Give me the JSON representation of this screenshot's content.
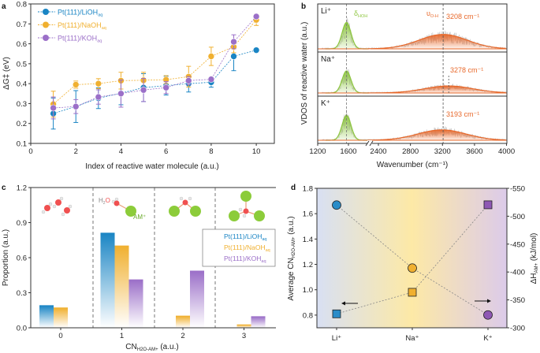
{
  "panel_labels": [
    "a",
    "b",
    "c",
    "d"
  ],
  "chart_data": [
    {
      "panel": "a",
      "type": "line",
      "xlabel": "Index of reactive water molecule (a.u.)",
      "ylabel": "ΔG‡ (eV)",
      "xlim": [
        0,
        10.8
      ],
      "ylim": [
        0.1,
        0.8
      ],
      "xticks": [
        "0",
        "2",
        "4",
        "6",
        "8",
        "10"
      ],
      "yticks": [
        "0.1",
        "0.2",
        "0.3",
        "0.4",
        "0.5",
        "0.6",
        "0.7",
        "0.8"
      ],
      "legend": "top-left",
      "x": [
        1,
        2,
        3,
        4,
        5,
        6,
        7,
        8,
        9,
        10
      ],
      "series": [
        {
          "name": "Pt(111)/LiOH",
          "sub": "aq",
          "color": "#1a85c4",
          "values": [
            0.25,
            0.285,
            0.327,
            0.352,
            0.38,
            0.39,
            0.4,
            0.407,
            0.537,
            0.568
          ],
          "errors": [
            0.078,
            0.08,
            0.052,
            0.058,
            0.07,
            0.047,
            0.042,
            0.025,
            0.072,
            0.0
          ]
        },
        {
          "name": "Pt(111)/NaOH",
          "sub": "aq",
          "color": "#f0b030",
          "values": [
            0.297,
            0.395,
            0.4,
            0.415,
            0.417,
            0.42,
            0.435,
            0.537,
            0.585,
            0.72
          ],
          "errors": [
            0.065,
            0.018,
            0.025,
            0.042,
            0.04,
            0.02,
            0.052,
            0.046,
            0.03,
            0.028
          ]
        },
        {
          "name": "Pt(111)/KOH",
          "sub": "aq",
          "color": "#9b6fc8",
          "values": [
            0.278,
            0.285,
            0.333,
            0.35,
            0.368,
            0.38,
            0.415,
            0.422,
            0.61,
            0.737
          ],
          "errors": [
            0.055,
            0.035,
            0.036,
            0.068,
            0.058,
            0.03,
            0.02,
            0.01,
            0.035,
            0.01
          ]
        }
      ]
    },
    {
      "panel": "b",
      "type": "area",
      "xlabel": "Wavenumber (cm⁻¹)",
      "ylabel": "VDOS of reactive water (a.u.)",
      "xticks": [
        "1200",
        "1600",
        "2400",
        "2800",
        "3200",
        "3600",
        "4000"
      ],
      "xtick_values": [
        1200,
        1600,
        2400,
        2800,
        3200,
        3600,
        4000
      ],
      "axis_break": [
        1870,
        2270
      ],
      "bend_label": "δ",
      "bend_sub": "HOH",
      "stretch_label": "υ",
      "stretch_sub": "O-H",
      "colors": {
        "bend": "#8dc63f",
        "stretch": "#e8682a",
        "raw": "#c8c8c8"
      },
      "reference_line": 3208,
      "bend_center": 1575,
      "panels": [
        {
          "label": "Li⁺",
          "peak": 3208,
          "peak_label": "3208 cm⁻¹",
          "bend_intensity": 0.55,
          "stretch_intensity": 0.3
        },
        {
          "label": "Na⁺",
          "peak": 3278,
          "peak_label": "3278 cm⁻¹",
          "bend_intensity": 0.5,
          "stretch_intensity": 0.16
        },
        {
          "label": "K⁺",
          "peak": 3193,
          "peak_label": "3193 cm⁻¹",
          "bend_intensity": 0.53,
          "stretch_intensity": 0.22
        }
      ]
    },
    {
      "panel": "c",
      "type": "bar",
      "xlabel": "CN",
      "xlabel_sub": "H2O-AM+",
      "xlabel_unit": " (a.u.)",
      "ylabel": "Proportion (a.u.)",
      "ylim": [
        0,
        1.2
      ],
      "yticks": [
        "0.0",
        "0.3",
        "0.6",
        "0.9",
        "1.2"
      ],
      "categories": [
        "0",
        "1",
        "2",
        "3"
      ],
      "molecule_labels": {
        "water": "H",
        "water_sub": "2",
        "water_o": "O",
        "cation": "AM⁺"
      },
      "legend": "right",
      "series": [
        {
          "name": "Pt(111)/LiOH",
          "sub": "aq",
          "color": "#1a85c4",
          "values": [
            0.19,
            0.81,
            0.0,
            0.0
          ]
        },
        {
          "name": "Pt(111)/NaOH",
          "sub": "aq",
          "color": "#f0b030",
          "values": [
            0.17,
            0.7,
            0.1,
            0.025
          ]
        },
        {
          "name": "Pt(111)/KOH",
          "sub": "aq",
          "color": "#9b6fc8",
          "values": [
            0.0,
            0.41,
            0.485,
            0.095
          ]
        }
      ]
    },
    {
      "panel": "d",
      "type": "scatter",
      "categories": [
        "Li⁺",
        "Na⁺",
        "K⁺"
      ],
      "ylabel": "Average CN",
      "ylabel_sub": "H2O-AM+",
      "ylabel_unit": " (a.u.)",
      "y2label": "ΔH",
      "y2label_sub": "AM+",
      "y2label_unit": " (kJ/mol)",
      "ylim": [
        0.7,
        1.8
      ],
      "yticks": [
        "0.8",
        "1.0",
        "1.2",
        "1.4",
        "1.6",
        "1.8"
      ],
      "y2lim": [
        -300,
        -550
      ],
      "y2ticks": [
        "-300",
        "-350",
        "-400",
        "-450",
        "-500",
        "-550"
      ],
      "background": [
        "#d8e0f3",
        "#fde9a6",
        "#dccbea"
      ],
      "series": [
        {
          "axis": "left",
          "marker": "square",
          "values": [
            0.81,
            0.98,
            1.67
          ],
          "colors": [
            "#2a8cc8",
            "#f0b030",
            "#8e58b4"
          ]
        },
        {
          "axis": "right",
          "marker": "circle",
          "values": [
            -520,
            -407,
            -323
          ],
          "colors": [
            "#2a8cc8",
            "#f0b030",
            "#8e58b4"
          ]
        }
      ]
    }
  ]
}
